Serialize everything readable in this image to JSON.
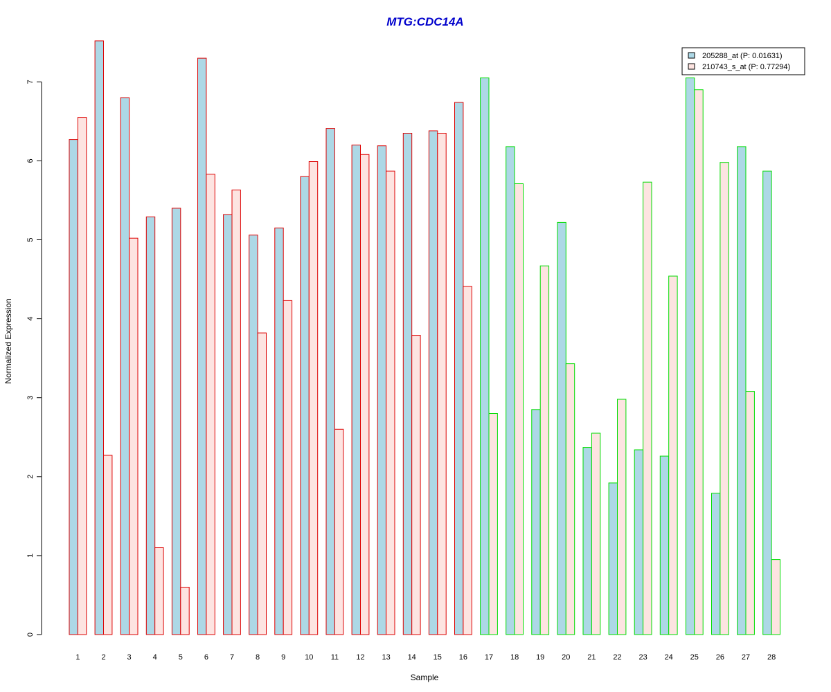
{
  "chart_data": {
    "type": "bar",
    "title": "MTG:CDC14A",
    "xlabel": "Sample",
    "ylabel": "Normalized Expression",
    "ylim": [
      0,
      7.5
    ],
    "yticks": [
      "0",
      "1",
      "2",
      "3",
      "4",
      "5",
      "6",
      "7"
    ],
    "grid": false,
    "legend_position": "top-right",
    "categories": [
      "1",
      "2",
      "3",
      "4",
      "5",
      "6",
      "7",
      "8",
      "9",
      "10",
      "11",
      "12",
      "13",
      "14",
      "15",
      "16",
      "17",
      "18",
      "19",
      "20",
      "21",
      "22",
      "23",
      "24",
      "25",
      "26",
      "27",
      "28"
    ],
    "group_border_colors": [
      "#dd0000",
      "#dd0000",
      "#dd0000",
      "#dd0000",
      "#dd0000",
      "#dd0000",
      "#dd0000",
      "#dd0000",
      "#dd0000",
      "#dd0000",
      "#dd0000",
      "#dd0000",
      "#dd0000",
      "#dd0000",
      "#dd0000",
      "#dd0000",
      "#00dd00",
      "#00dd00",
      "#00dd00",
      "#00dd00",
      "#00dd00",
      "#00dd00",
      "#00dd00",
      "#00dd00",
      "#00dd00",
      "#00dd00",
      "#00dd00",
      "#00dd00"
    ],
    "series": [
      {
        "name": "205288_at (P: 0.01631)",
        "fill": "#add8e6",
        "values": [
          6.27,
          7.52,
          6.8,
          5.29,
          5.4,
          7.3,
          5.32,
          5.06,
          5.15,
          5.8,
          6.41,
          6.2,
          6.19,
          6.35,
          6.38,
          6.74,
          7.05,
          6.18,
          2.85,
          5.22,
          2.37,
          1.92,
          2.34,
          2.26,
          7.05,
          1.79,
          6.18,
          5.87
        ]
      },
      {
        "name": "210743_s_at (P: 0.77294)",
        "fill": "#fde4e1",
        "values": [
          6.55,
          2.27,
          5.02,
          1.1,
          0.6,
          5.83,
          5.63,
          3.82,
          4.23,
          5.99,
          2.6,
          6.08,
          5.87,
          3.79,
          6.35,
          4.41,
          2.8,
          5.71,
          4.67,
          3.43,
          2.55,
          2.98,
          5.73,
          4.54,
          6.9,
          5.98,
          3.08,
          0.95
        ]
      }
    ]
  }
}
